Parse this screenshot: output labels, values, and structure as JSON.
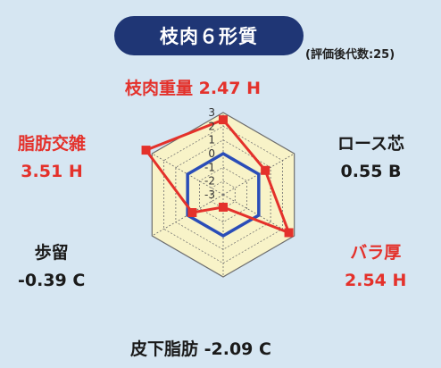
{
  "header": {
    "title": "枝肉６形質",
    "note": "(評価後代数:25)"
  },
  "colors": {
    "background": "#d6e6f2",
    "pill": "#1f3675",
    "plot_fill": "#f8f3c8",
    "grid": "#6d6d6d",
    "zero_line": "#2a4db8",
    "series": "#e4312b",
    "highlight_label": "#e4312b",
    "normal_label": "#1a1a1a"
  },
  "chart_data": {
    "type": "radar",
    "range": [
      -3,
      3
    ],
    "ticks": [
      "3",
      "2",
      "1",
      "0",
      "-1",
      "-2",
      "-3"
    ],
    "reference_value": 0,
    "axes": [
      {
        "name": "枝肉重量",
        "value": 2.47,
        "value_text": "2.47",
        "grade": "H",
        "highlight": true
      },
      {
        "name": "ロース芯",
        "value": 0.55,
        "value_text": "0.55",
        "grade": "B",
        "highlight": false
      },
      {
        "name": "バラ厚",
        "value": 2.54,
        "value_text": "2.54",
        "grade": "H",
        "highlight": true
      },
      {
        "name": "皮下脂肪",
        "value": -2.09,
        "value_text": "-2.09",
        "grade": "C",
        "highlight": false
      },
      {
        "name": "歩留",
        "value": -0.39,
        "value_text": "-0.39",
        "grade": "C",
        "highlight": false
      },
      {
        "name": "脂肪交雑",
        "value": 3.51,
        "value_text": "3.51",
        "grade": "H",
        "highlight": true
      }
    ]
  }
}
